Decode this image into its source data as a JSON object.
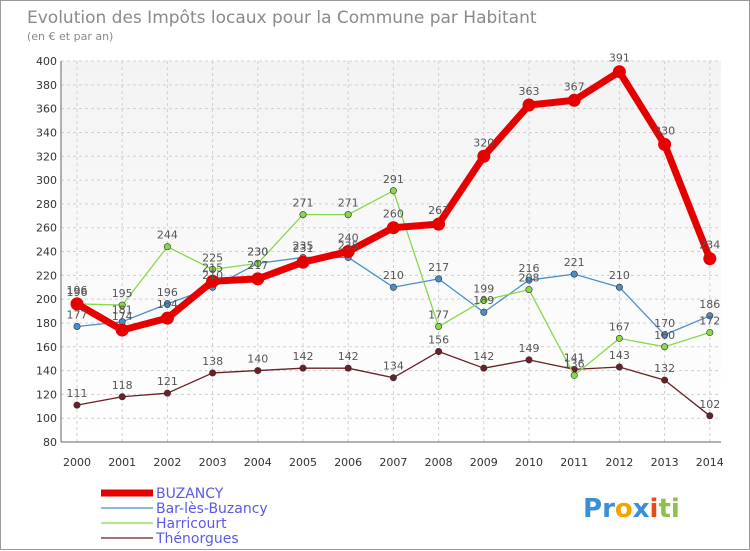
{
  "chart_data": {
    "type": "line",
    "title": "Evolution des Impôts locaux pour la Commune par Habitant",
    "subtitle": "(en € et par an)",
    "xlabel": "",
    "ylabel": "",
    "categories": [
      "2000",
      "2001",
      "2002",
      "2003",
      "2004",
      "2005",
      "2006",
      "2007",
      "2008",
      "2009",
      "2010",
      "2011",
      "2012",
      "2013",
      "2014"
    ],
    "ylim": [
      80,
      400
    ],
    "yticks": [
      80,
      100,
      120,
      140,
      160,
      180,
      200,
      220,
      240,
      260,
      280,
      300,
      320,
      340,
      360,
      380,
      400
    ],
    "grid": true,
    "legend_position": "bottom-left",
    "series": [
      {
        "name": "Thénorgues",
        "color": "#6b1f26",
        "values": [
          111,
          118,
          121,
          138,
          140,
          142,
          142,
          134,
          156,
          142,
          149,
          141,
          143,
          132,
          102
        ]
      },
      {
        "name": "Bar-lès-Buzancy",
        "color": "#4a8fcc",
        "values": [
          177,
          181,
          196,
          210,
          230,
          235,
          235,
          210,
          217,
          189,
          216,
          221,
          210,
          170,
          186
        ]
      },
      {
        "name": "Harricourt",
        "color": "#88d84a",
        "values": [
          196,
          195,
          244,
          225,
          230,
          271,
          271,
          291,
          177,
          199,
          208,
          136,
          167,
          160,
          172
        ]
      },
      {
        "name": "BUZANCY",
        "color": "#e60000",
        "values": [
          196,
          174,
          184,
          215,
          217,
          231,
          240,
          260,
          263,
          320,
          363,
          367,
          391,
          330,
          234
        ]
      }
    ],
    "legend_order": [
      "BUZANCY",
      "Bar-lès-Buzancy",
      "Harricourt",
      "Thénorgues"
    ]
  },
  "logo": {
    "letters": [
      "P",
      "r",
      "o",
      "x",
      "i",
      "t",
      "i"
    ],
    "colors": [
      "#3b8fd6",
      "#3b8fd6",
      "#f5a300",
      "#3b8fd6",
      "#e64a19",
      "#8bc34a",
      "#8bc34a"
    ]
  }
}
